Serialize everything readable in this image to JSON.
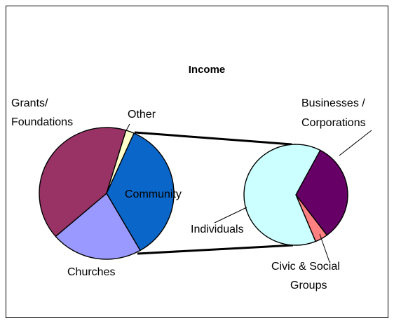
{
  "chart_data": [
    {
      "type": "pie",
      "title": "Income",
      "categories": [
        "Community",
        "Churches",
        "Grants/ Foundations",
        "Other"
      ],
      "values": [
        35,
        22,
        41,
        2
      ],
      "colors": [
        "#0a66c8",
        "#9999ff",
        "#993366",
        "#ffffcc"
      ],
      "labels": {
        "community": "Community",
        "churches": "Churches",
        "grants_line1": "Grants/",
        "grants_line2": "Foundations",
        "other": "Other"
      },
      "exploded_category": "Community"
    },
    {
      "type": "pie",
      "title": "",
      "categories": [
        "Businesses / Corporations",
        "Civic & Social Groups",
        "Individuals"
      ],
      "values": [
        32,
        4,
        64
      ],
      "colors": [
        "#660066",
        "#ff8080",
        "#ccffff"
      ],
      "labels": {
        "businesses_line1": "Businesses /",
        "businesses_line2": "Corporations",
        "civic_line1": "Civic & Social",
        "civic_line2": "Groups",
        "individuals": "Individuals"
      }
    }
  ]
}
